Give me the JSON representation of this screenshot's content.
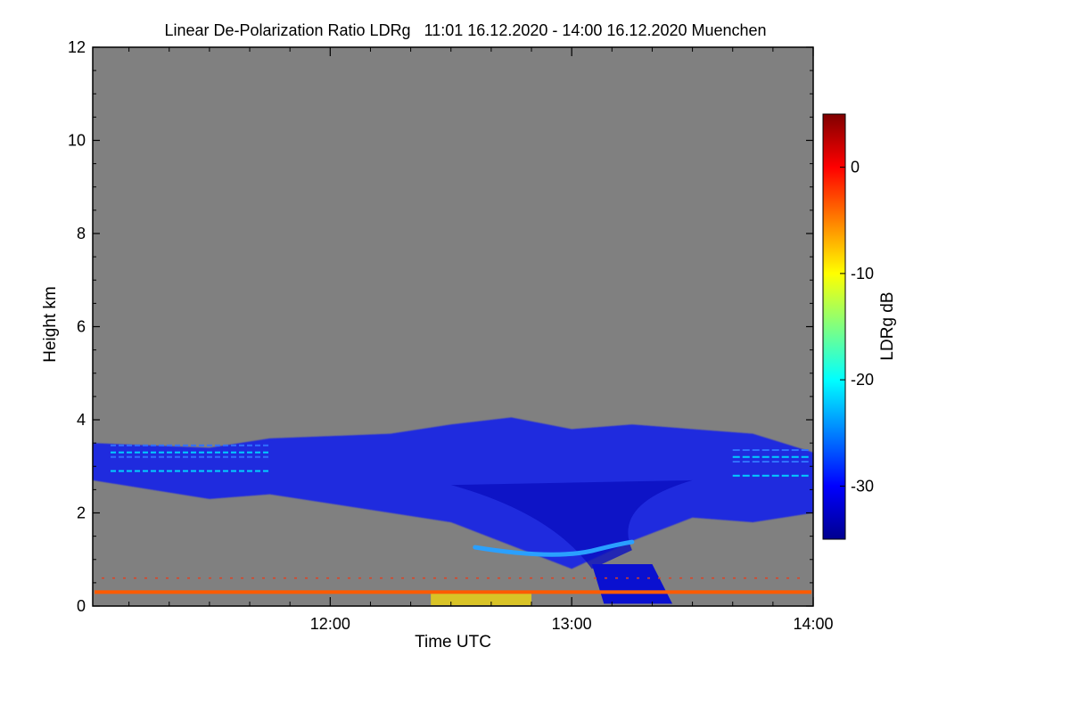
{
  "chart_data": {
    "type": "heatmap",
    "title": "Linear De-Polarization Ratio LDRg   11:01 16.12.2020 - 14:00 16.12.2020 Muenchen",
    "xlabel": "Time UTC",
    "ylabel": "Height km",
    "colorbar_label": "LDRg dB",
    "x_range": [
      "11:01",
      "14:00"
    ],
    "x_ticks": [
      "12:00",
      "13:00",
      "14:00"
    ],
    "ylim": [
      0,
      12
    ],
    "y_ticks": [
      0,
      2,
      4,
      6,
      8,
      10,
      12
    ],
    "colorbar_range": [
      -35,
      5
    ],
    "colorbar_ticks": [
      0,
      -10,
      -20,
      -30
    ],
    "background_color": "#808080",
    "colormap": [
      "#00008f",
      "#0000ff",
      "#0080ff",
      "#00ffff",
      "#80ff80",
      "#ffff00",
      "#ff8000",
      "#ff0000",
      "#800000"
    ],
    "features": {
      "cloud_layer_top_km": [
        [
          "11:01",
          3.5
        ],
        [
          "11:30",
          3.4
        ],
        [
          "11:45",
          3.6
        ],
        [
          "12:15",
          3.7
        ],
        [
          "12:30",
          3.9
        ],
        [
          "12:45",
          4.05
        ],
        [
          "13:00",
          3.8
        ],
        [
          "13:15",
          3.9
        ],
        [
          "13:30",
          3.8
        ],
        [
          "13:45",
          3.7
        ],
        [
          "14:00",
          3.3
        ]
      ],
      "cloud_layer_base_km": [
        [
          "11:01",
          2.7
        ],
        [
          "11:30",
          2.3
        ],
        [
          "11:45",
          2.4
        ],
        [
          "12:15",
          2.0
        ],
        [
          "12:30",
          1.8
        ],
        [
          "12:45",
          1.3
        ],
        [
          "13:00",
          0.8
        ],
        [
          "13:15",
          1.4
        ],
        [
          "13:30",
          1.9
        ],
        [
          "13:45",
          1.8
        ],
        [
          "14:00",
          2.0
        ]
      ],
      "melting_layer_km": 1.3,
      "near_surface_layer_km": 0.3
    }
  }
}
